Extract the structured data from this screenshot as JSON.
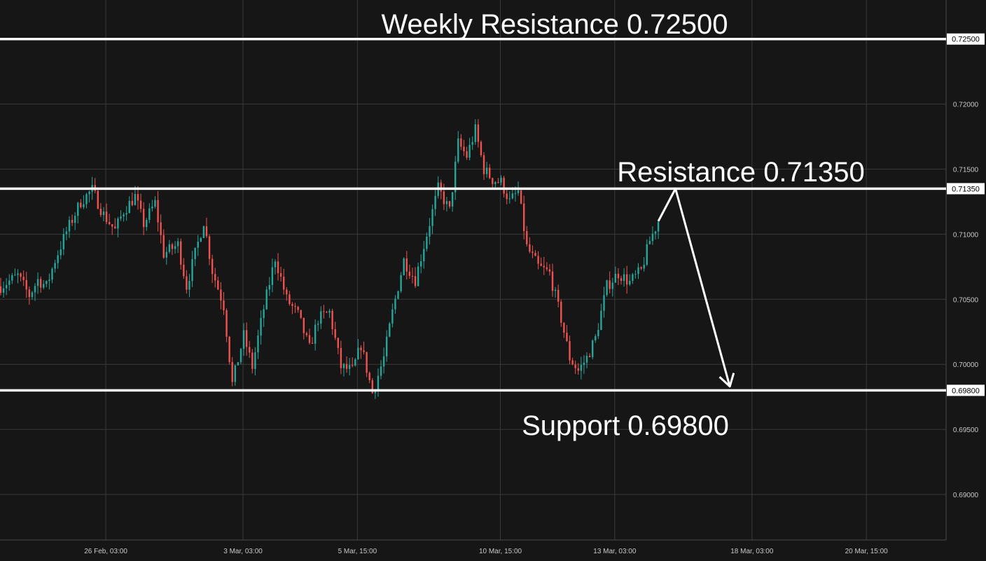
{
  "chart_data": {
    "type": "candlestick",
    "title": "",
    "xlabel": "",
    "ylabel": "",
    "ylim": [
      0.6865,
      0.728
    ],
    "y_ticks": [
      "0.72500",
      "0.72000",
      "0.71500",
      "0.71350",
      "0.71000",
      "0.70500",
      "0.70000",
      "0.69800",
      "0.69500",
      "0.69000"
    ],
    "x_ticks": [
      "26 Feb, 03:00",
      "3 Mar, 03:00",
      "5 Mar, 15:00",
      "10 Mar, 15:00",
      "13 Mar, 03:00",
      "18 Mar, 03:00",
      "20 Mar, 15:00"
    ],
    "grid": true,
    "colors": {
      "background": "#161616",
      "grid": "#3a3a3a",
      "up": "#26a69a",
      "down": "#ef5350",
      "level": "#ffffff"
    },
    "price_path": [
      [
        0,
        0.706
      ],
      [
        6,
        0.7068
      ],
      [
        10,
        0.7053
      ],
      [
        13,
        0.7065
      ],
      [
        16,
        0.706
      ],
      [
        19,
        0.708
      ],
      [
        23,
        0.7102
      ],
      [
        28,
        0.7125
      ],
      [
        32,
        0.7134
      ],
      [
        36,
        0.7115
      ],
      [
        40,
        0.7103
      ],
      [
        43,
        0.7118
      ],
      [
        47,
        0.7129
      ],
      [
        50,
        0.7108
      ],
      [
        54,
        0.7124
      ],
      [
        57,
        0.7085
      ],
      [
        62,
        0.7092
      ],
      [
        65,
        0.706
      ],
      [
        71,
        0.711
      ],
      [
        74,
        0.7072
      ],
      [
        78,
        0.7045
      ],
      [
        81,
        0.6985
      ],
      [
        85,
        0.7022
      ],
      [
        88,
        0.6998
      ],
      [
        92,
        0.7043
      ],
      [
        96,
        0.7082
      ],
      [
        100,
        0.705
      ],
      [
        104,
        0.7038
      ],
      [
        108,
        0.7012
      ],
      [
        111,
        0.7035
      ],
      [
        115,
        0.704
      ],
      [
        119,
        0.6998
      ],
      [
        123,
        0.6995
      ],
      [
        126,
        0.7015
      ],
      [
        130,
        0.6978
      ],
      [
        134,
        0.7005
      ],
      [
        137,
        0.704
      ],
      [
        141,
        0.708
      ],
      [
        145,
        0.7065
      ],
      [
        149,
        0.71
      ],
      [
        153,
        0.7135
      ],
      [
        157,
        0.7118
      ],
      [
        160,
        0.717
      ],
      [
        163,
        0.716
      ],
      [
        166,
        0.718
      ],
      [
        169,
        0.715
      ],
      [
        172,
        0.7142
      ],
      [
        175,
        0.714
      ],
      [
        178,
        0.7125
      ],
      [
        181,
        0.7133
      ],
      [
        184,
        0.709
      ],
      [
        188,
        0.7075
      ],
      [
        192,
        0.707
      ],
      [
        196,
        0.7035
      ],
      [
        199,
        0.7005
      ],
      [
        202,
        0.6995
      ],
      [
        205,
        0.7005
      ],
      [
        208,
        0.702
      ],
      [
        212,
        0.706
      ],
      [
        216,
        0.707
      ],
      [
        220,
        0.7063
      ],
      [
        224,
        0.7072
      ],
      [
        227,
        0.7095
      ],
      [
        230,
        0.711
      ]
    ],
    "levels": [
      {
        "value": 0.725,
        "label": "0.72500",
        "annotation": "Weekly Resistance 0.72500"
      },
      {
        "value": 0.7135,
        "label": "0.71350",
        "annotation": "Resistance 0.71350"
      },
      {
        "value": 0.698,
        "label": "0.69800",
        "annotation": "Support 0.69800"
      }
    ],
    "projection_arrow": [
      [
        230,
        0.711
      ],
      [
        236,
        0.7135
      ],
      [
        255,
        0.6983
      ]
    ]
  }
}
